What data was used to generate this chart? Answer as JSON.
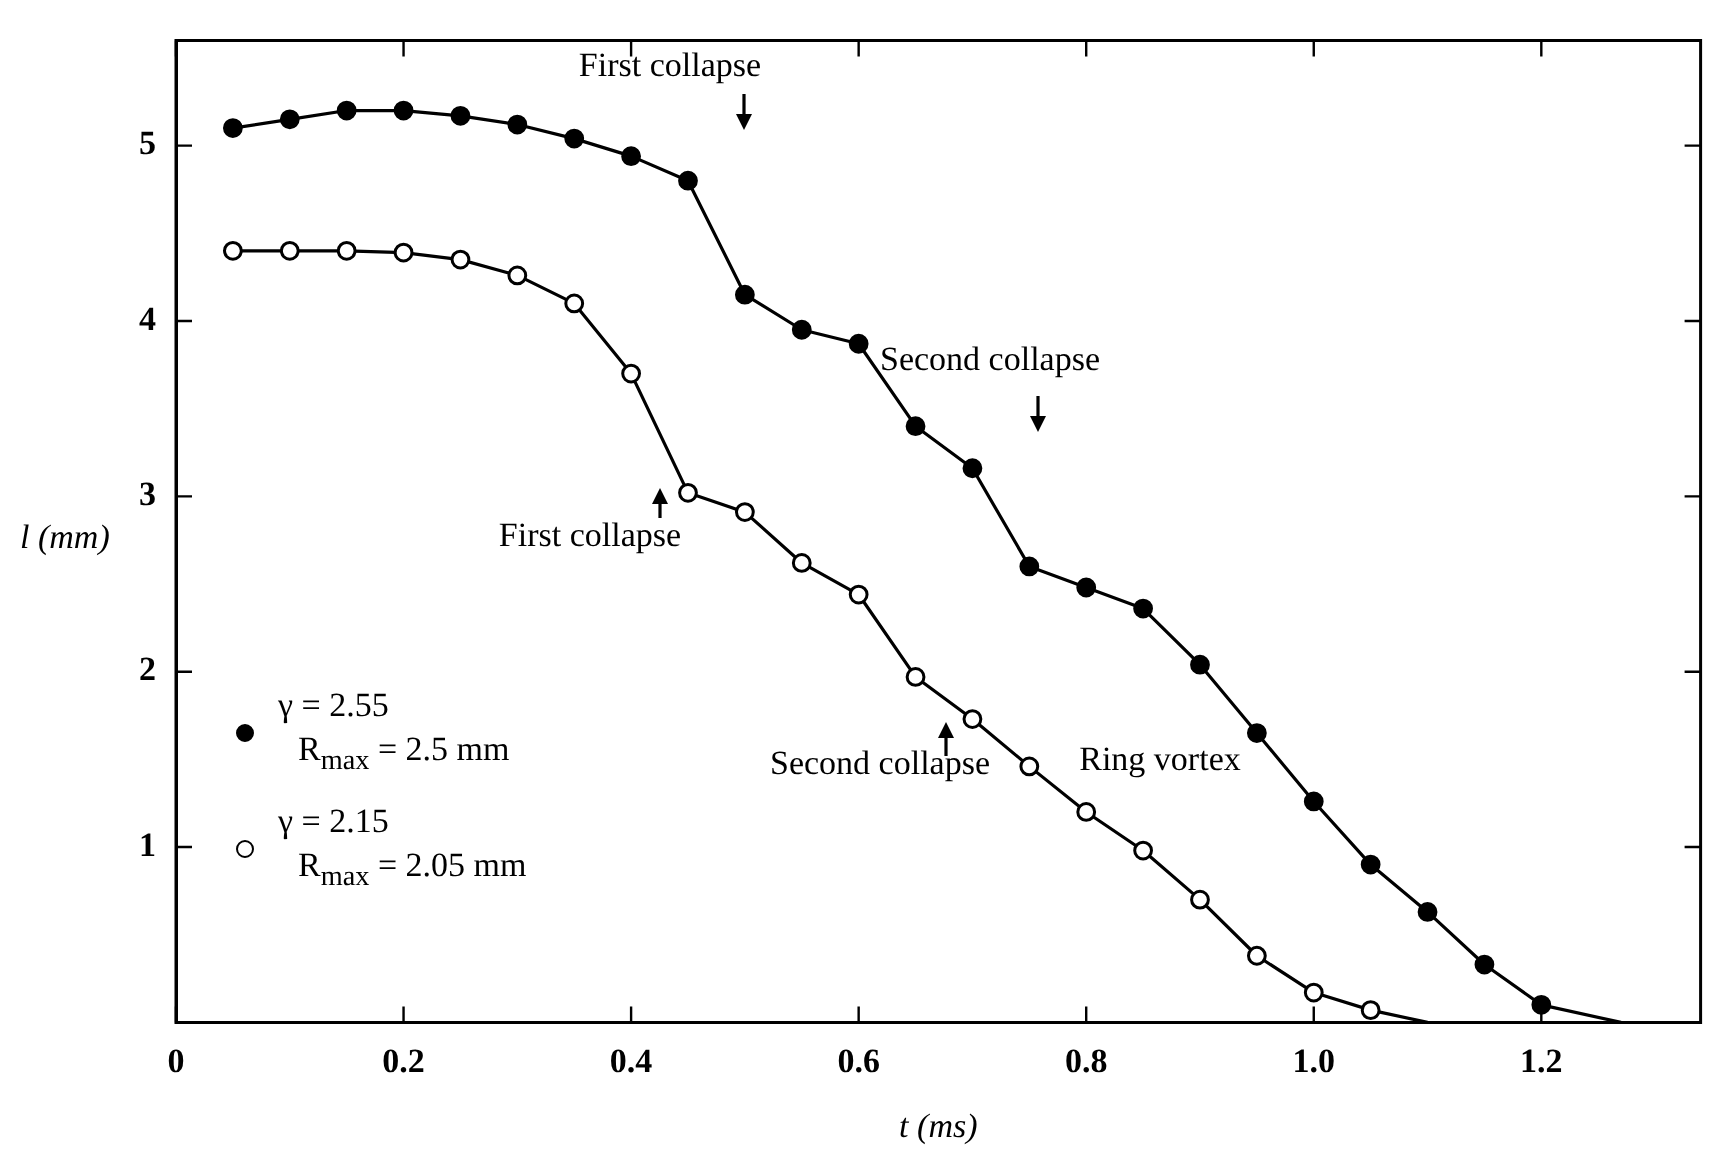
{
  "chart_data": {
    "type": "line",
    "xlabel": "t (ms)",
    "ylabel": "l (mm)",
    "xlim": [
      0,
      1.34
    ],
    "xticks": [
      0,
      0.2,
      0.4,
      0.6,
      0.8,
      {
        "value": 1,
        "label": "1.0"
      },
      1.2
    ],
    "ylim": [
      0,
      5.6
    ],
    "yticks": [
      1,
      2,
      3,
      4,
      5
    ],
    "x": [
      0.05,
      0.1,
      0.15,
      0.2,
      0.25,
      0.3,
      0.35,
      0.4,
      0.45,
      0.5,
      0.55,
      0.6,
      0.65,
      0.7,
      0.75,
      0.8,
      0.85,
      0.9,
      0.95,
      1.0,
      1.05,
      1.1,
      1.15,
      1.2
    ],
    "series": [
      {
        "name": "γ = 2.55\nR$_{max}$ = 2.5 mm",
        "color": "#000000",
        "marker": "circle",
        "values": [
          5.1,
          5.15,
          5.2,
          5.2,
          5.17,
          5.12,
          5.04,
          4.94,
          4.8,
          4.15,
          3.95,
          3.87,
          3.4,
          3.16,
          2.6,
          2.48,
          2.36,
          2.04,
          1.65,
          1.26,
          0.9,
          0.63,
          0.33,
          0.1
        ]
      },
      {
        "name": "γ = 2.15\nR$_{max}$ = 2.05 mm",
        "color": "#000000",
        "marker": "circle-open",
        "values": [
          4.4,
          4.4,
          4.4,
          4.39,
          4.35,
          4.26,
          4.1,
          3.7,
          3.02,
          2.91,
          2.62,
          2.44,
          1.97,
          1.73,
          1.46,
          1.2,
          0.98,
          0.7,
          0.38,
          0.17,
          0.07,
          null,
          null,
          null
        ]
      },
      {
        "color": "#000000",
        "marker": "none",
        "x": [
          1.2,
          1.27
        ],
        "values": [
          0.1,
          0
        ]
      },
      {
        "color": "#000000",
        "marker": "none",
        "x": [
          1.05,
          1.1
        ],
        "values": [
          0.07,
          0
        ]
      }
    ],
    "legend": "bottom left",
    "grid": false,
    "annotations": [
      "First collapse",
      "First collapse",
      "Second collapse",
      "Second collapse",
      "Ring vortex"
    ]
  }
}
